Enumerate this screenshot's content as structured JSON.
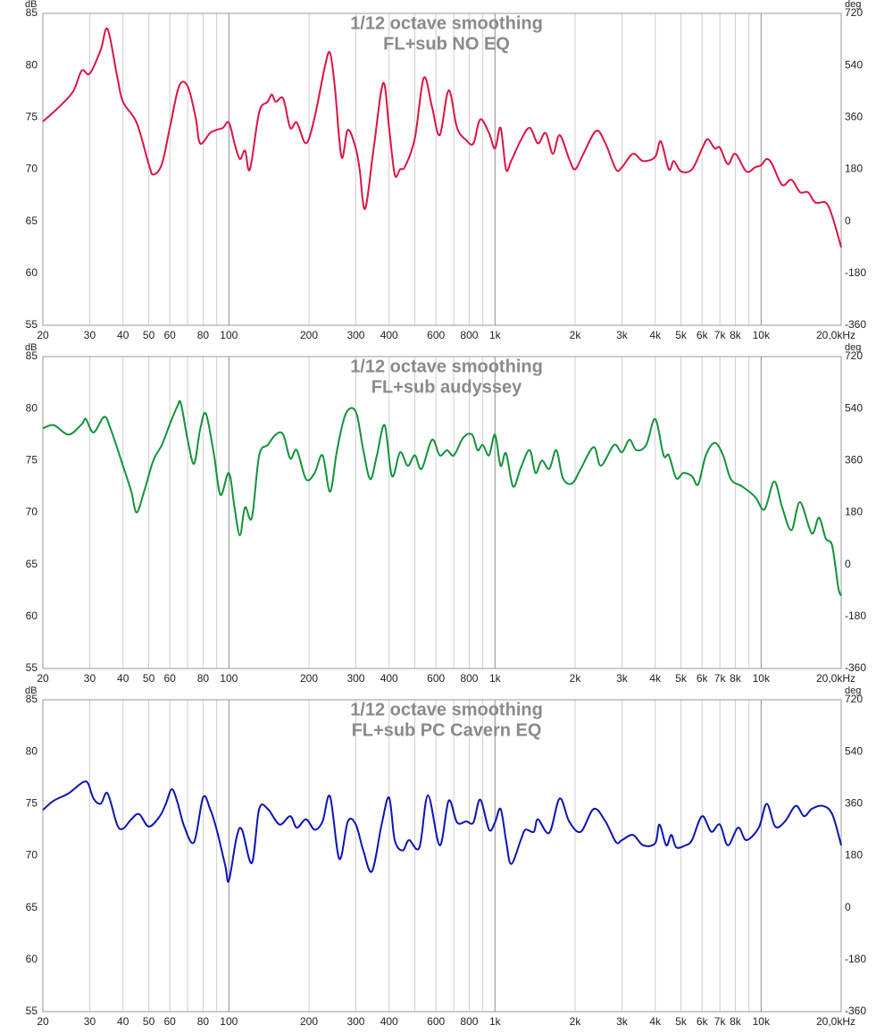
{
  "chart_data": [
    {
      "type": "line",
      "title": "1/12 octave smoothing",
      "subtitle": "FL+sub NO EQ",
      "ylabel": "dB",
      "y2label": "deg",
      "xscale": "log",
      "grid": true,
      "color": "#dc1444",
      "xlim": [
        20,
        20000
      ],
      "ylim": [
        55,
        85
      ],
      "y2lim": [
        -360,
        720
      ],
      "xticks": [
        20,
        30,
        40,
        50,
        60,
        80,
        100,
        200,
        300,
        400,
        600,
        800,
        {
          "value": 1000,
          "label": "1k"
        },
        {
          "value": 2000,
          "label": "2k"
        },
        {
          "value": 3000,
          "label": "3k"
        },
        {
          "value": 4000,
          "label": "4k"
        },
        {
          "value": 5000,
          "label": "5k"
        },
        {
          "value": 6000,
          "label": "6k"
        },
        {
          "value": 7000,
          "label": "7k"
        },
        {
          "value": 8000,
          "label": "8k"
        },
        {
          "value": 10000,
          "label": "10k"
        },
        {
          "value": 20000,
          "label": "20,0kHz"
        }
      ],
      "xminor": [
        70,
        90,
        500,
        700,
        900,
        9000
      ],
      "yticks": [
        55,
        60,
        65,
        70,
        75,
        80,
        85
      ],
      "y2ticks": [
        -360,
        -180,
        0,
        180,
        360,
        540,
        720
      ],
      "x": [
        20,
        23,
        26,
        28,
        30,
        33,
        35,
        38,
        40,
        45,
        50,
        52,
        56,
        60,
        65,
        70,
        75,
        78,
        85,
        90,
        95,
        100,
        105,
        110,
        115,
        120,
        130,
        140,
        145,
        150,
        160,
        170,
        180,
        195,
        210,
        230,
        240,
        250,
        265,
        280,
        300,
        310,
        325,
        350,
        380,
        400,
        420,
        440,
        460,
        500,
        540,
        580,
        620,
        670,
        720,
        780,
        830,
        880,
        950,
        1000,
        1050,
        1100,
        1150,
        1250,
        1350,
        1450,
        1550,
        1650,
        1750,
        1900,
        2000,
        2150,
        2400,
        2600,
        2850,
        3000,
        3300,
        3600,
        4000,
        4200,
        4500,
        4700,
        5000,
        5500,
        6000,
        6300,
        6700,
        7000,
        7500,
        8000,
        8800,
        9500,
        10000,
        10500,
        11000,
        12000,
        13000,
        14000,
        15000,
        16000,
        17500,
        18500,
        20000
      ],
      "values": [
        74.6,
        76,
        77.5,
        79.5,
        79.2,
        81.5,
        83.5,
        79,
        76.5,
        74.5,
        70.5,
        69.5,
        70.5,
        74,
        78,
        78,
        75,
        72.5,
        73.5,
        73.8,
        74,
        74.5,
        72.5,
        71,
        71.8,
        70,
        75.5,
        76.5,
        77.2,
        76.5,
        76.8,
        74,
        74.5,
        72.5,
        75,
        80,
        81.2,
        78,
        71.2,
        73.8,
        72,
        70,
        66.2,
        72,
        78.3,
        74,
        69.5,
        70,
        70.3,
        73,
        78.8,
        76,
        73.3,
        77.6,
        74,
        72.8,
        72.5,
        74.8,
        73.5,
        72,
        74,
        70,
        70.8,
        72.8,
        74,
        72.5,
        73.5,
        71.5,
        73.3,
        71,
        70,
        71.5,
        73.7,
        72.5,
        70,
        70.2,
        71.5,
        70.8,
        71.2,
        72.7,
        70,
        70.8,
        69.8,
        70,
        72,
        72.9,
        72,
        72.1,
        70.5,
        71.5,
        69.8,
        70.2,
        70.4,
        71,
        70.5,
        68.5,
        69,
        67.8,
        67.8,
        66.8,
        66.8,
        65.5,
        62.5
      ]
    },
    {
      "type": "line",
      "title": "1/12 octave smoothing",
      "subtitle": "FL+sub audyssey",
      "ylabel": "dB",
      "y2label": "deg",
      "xscale": "log",
      "grid": true,
      "color": "#12923a",
      "xlim": [
        20,
        20000
      ],
      "ylim": [
        55,
        85
      ],
      "y2lim": [
        -360,
        720
      ],
      "xticks": [
        20,
        30,
        40,
        50,
        60,
        80,
        100,
        200,
        300,
        400,
        600,
        800,
        {
          "value": 1000,
          "label": "1k"
        },
        {
          "value": 2000,
          "label": "2k"
        },
        {
          "value": 3000,
          "label": "3k"
        },
        {
          "value": 4000,
          "label": "4k"
        },
        {
          "value": 5000,
          "label": "5k"
        },
        {
          "value": 6000,
          "label": "6k"
        },
        {
          "value": 7000,
          "label": "7k"
        },
        {
          "value": 8000,
          "label": "8k"
        },
        {
          "value": 10000,
          "label": "10k"
        },
        {
          "value": 20000,
          "label": "20,0kHz"
        }
      ],
      "xminor": [
        70,
        90,
        500,
        700,
        900,
        9000
      ],
      "yticks": [
        55,
        60,
        65,
        70,
        75,
        80,
        85
      ],
      "y2ticks": [
        -360,
        -180,
        0,
        180,
        360,
        540,
        720
      ],
      "x": [
        20,
        22,
        25,
        28,
        29,
        31,
        34,
        36,
        40,
        43,
        45,
        48,
        52,
        56,
        60,
        64,
        66,
        70,
        74,
        78,
        82,
        88,
        93,
        100,
        105,
        110,
        115,
        122,
        130,
        140,
        150,
        160,
        170,
        180,
        195,
        210,
        225,
        240,
        255,
        275,
        300,
        320,
        340,
        360,
        385,
        410,
        440,
        470,
        500,
        530,
        580,
        620,
        660,
        700,
        760,
        820,
        860,
        900,
        950,
        1000,
        1050,
        1100,
        1170,
        1250,
        1350,
        1420,
        1500,
        1600,
        1700,
        1800,
        1950,
        2100,
        2350,
        2500,
        2800,
        3000,
        3200,
        3400,
        3700,
        4000,
        4300,
        4500,
        4800,
        5100,
        5500,
        5800,
        6200,
        6700,
        7200,
        7700,
        8500,
        9500,
        10300,
        11200,
        12000,
        13000,
        14000,
        15500,
        16500,
        17500,
        18500,
        19500,
        20000
      ],
      "values": [
        78.1,
        78.4,
        77.5,
        78.5,
        79,
        77.7,
        79.2,
        78,
        74.5,
        72,
        70,
        72,
        75,
        76.5,
        78.5,
        80.2,
        80.5,
        77,
        74.7,
        78,
        79.5,
        75.5,
        71.7,
        73.8,
        70.5,
        67.8,
        70.5,
        69.5,
        75.5,
        76.5,
        77.5,
        77.5,
        75.2,
        76,
        73.2,
        73.8,
        75.5,
        72,
        76,
        79.5,
        79.7,
        76,
        73.2,
        75.5,
        78.4,
        73.5,
        75.8,
        74.5,
        75.5,
        74.2,
        77,
        75.5,
        76,
        75.5,
        77.2,
        77.5,
        76,
        76.5,
        75.5,
        77.5,
        74.5,
        75.7,
        72.5,
        74.3,
        76,
        73.8,
        75,
        74.2,
        76,
        73.3,
        72.8,
        74.2,
        76.3,
        74.5,
        76.5,
        75.8,
        77,
        76,
        76.5,
        79,
        75.5,
        75.5,
        73.3,
        73.8,
        73.5,
        72.7,
        75.5,
        76.7,
        75.5,
        73.2,
        72.5,
        71.5,
        70.3,
        73,
        70.5,
        68.3,
        71,
        68,
        69.5,
        67.5,
        66.8,
        62.8,
        62
      ]
    },
    {
      "type": "line",
      "title": "1/12 octave smoothing",
      "subtitle": "FL+sub PC Cavern EQ",
      "ylabel": "dB",
      "y2label": "deg",
      "xscale": "log",
      "grid": true,
      "color": "#0c14b4",
      "xlim": [
        20,
        20000
      ],
      "ylim": [
        55,
        85
      ],
      "y2lim": [
        -360,
        720
      ],
      "xticks": [
        20,
        30,
        40,
        50,
        60,
        80,
        100,
        200,
        300,
        400,
        600,
        800,
        {
          "value": 1000,
          "label": "1k"
        },
        {
          "value": 2000,
          "label": "2k"
        },
        {
          "value": 3000,
          "label": "3k"
        },
        {
          "value": 4000,
          "label": "4k"
        },
        {
          "value": 5000,
          "label": "5k"
        },
        {
          "value": 6000,
          "label": "6k"
        },
        {
          "value": 7000,
          "label": "7k"
        },
        {
          "value": 8000,
          "label": "8k"
        },
        {
          "value": 10000,
          "label": "10k"
        },
        {
          "value": 20000,
          "label": "20,0kHz"
        }
      ],
      "xminor": [
        70,
        90,
        500,
        700,
        900,
        9000
      ],
      "yticks": [
        55,
        60,
        65,
        70,
        75,
        80,
        85
      ],
      "y2ticks": [
        -360,
        -180,
        0,
        180,
        360,
        540,
        720
      ],
      "x": [
        20,
        22,
        25,
        28,
        29.5,
        31,
        33,
        35,
        38,
        40,
        43,
        46,
        50,
        55,
        58,
        61,
        64,
        68,
        74,
        80,
        85,
        90,
        97,
        100,
        107,
        112,
        122,
        130,
        140,
        155,
        170,
        180,
        195,
        210,
        225,
        240,
        260,
        280,
        300,
        320,
        345,
        375,
        400,
        420,
        450,
        475,
        520,
        560,
        620,
        670,
        720,
        780,
        830,
        880,
        950,
        1000,
        1050,
        1100,
        1150,
        1250,
        1300,
        1400,
        1450,
        1600,
        1750,
        1900,
        2100,
        2350,
        2600,
        2850,
        3000,
        3300,
        3600,
        4000,
        4150,
        4400,
        4600,
        4800,
        5200,
        5500,
        6000,
        6500,
        7000,
        7500,
        8200,
        8800,
        9800,
        10500,
        11300,
        12300,
        13500,
        14500,
        15500,
        17000,
        18500,
        20000
      ],
      "values": [
        74.4,
        75.3,
        76,
        77,
        77,
        75.5,
        75,
        76,
        73,
        72.6,
        73.5,
        74,
        72.8,
        73.8,
        75,
        76.4,
        75.2,
        72.8,
        71.3,
        75.6,
        74.5,
        72.5,
        69,
        67.6,
        71.8,
        72.5,
        69.3,
        74.5,
        74.5,
        73,
        73.8,
        72.7,
        73.5,
        72.5,
        73.3,
        75.7,
        69.7,
        73.3,
        73,
        70.5,
        68.5,
        73,
        75.6,
        71.5,
        70.5,
        71.5,
        70.8,
        75.8,
        71,
        75.3,
        73.2,
        73.3,
        73.2,
        75.4,
        72.5,
        73.2,
        74.5,
        71.5,
        69.2,
        71.5,
        72.5,
        72.3,
        73.5,
        72.2,
        75.5,
        73.3,
        72.3,
        74.5,
        73.3,
        71.3,
        71.5,
        72,
        71,
        71.2,
        73,
        71,
        72,
        70.8,
        71,
        71.5,
        73.8,
        72.3,
        73,
        71,
        72.7,
        71.5,
        72.7,
        75,
        72.8,
        73.3,
        74.8,
        73.8,
        74.5,
        74.8,
        74,
        71
      ]
    }
  ]
}
